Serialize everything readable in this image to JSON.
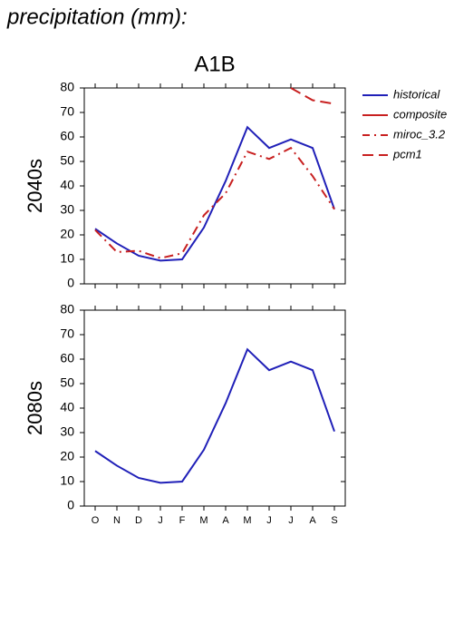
{
  "title": "precipitation (mm):",
  "scenario": "A1B",
  "chart_data": [
    {
      "type": "line",
      "ylabel": "2040s",
      "ylim": [
        0,
        80
      ],
      "yticks": [
        0,
        10,
        20,
        30,
        40,
        50,
        60,
        70,
        80
      ],
      "legend": "outside-right",
      "series": [
        {
          "name": "historical",
          "color": "#2020b8",
          "linestyle": "solid",
          "values": [
            22.5,
            16.5,
            11.5,
            9.5,
            10,
            23,
            42,
            64,
            55.5,
            59,
            55.5,
            30.5
          ]
        },
        {
          "name": "composite",
          "color": "#c82020",
          "linestyle": "solid",
          "values": [
            null,
            null,
            null,
            null,
            null,
            null,
            null,
            null,
            null,
            null,
            null,
            null
          ]
        },
        {
          "name": "miroc_3.2",
          "color": "#c82020",
          "linestyle": "dashdot",
          "values": [
            22,
            13,
            13.5,
            10.5,
            12.5,
            28,
            37,
            54,
            51,
            55.5,
            44,
            30.5
          ]
        },
        {
          "name": "pcm1",
          "color": "#c82020",
          "linestyle": "dashed",
          "values": [
            null,
            null,
            null,
            null,
            null,
            null,
            null,
            null,
            null,
            80,
            75,
            73.5
          ]
        }
      ]
    },
    {
      "type": "line",
      "ylabel": "2080s",
      "ylim": [
        0,
        80
      ],
      "yticks": [
        0,
        10,
        20,
        30,
        40,
        50,
        60,
        70,
        80
      ],
      "categories": [
        "O",
        "N",
        "D",
        "J",
        "F",
        "M",
        "A",
        "M",
        "J",
        "J",
        "A",
        "S"
      ],
      "series": [
        {
          "name": "historical",
          "color": "#2020b8",
          "linestyle": "solid",
          "values": [
            22.5,
            16.5,
            11.5,
            9.5,
            10,
            23,
            42,
            64,
            55.5,
            59,
            55.5,
            30.5
          ]
        }
      ]
    }
  ]
}
